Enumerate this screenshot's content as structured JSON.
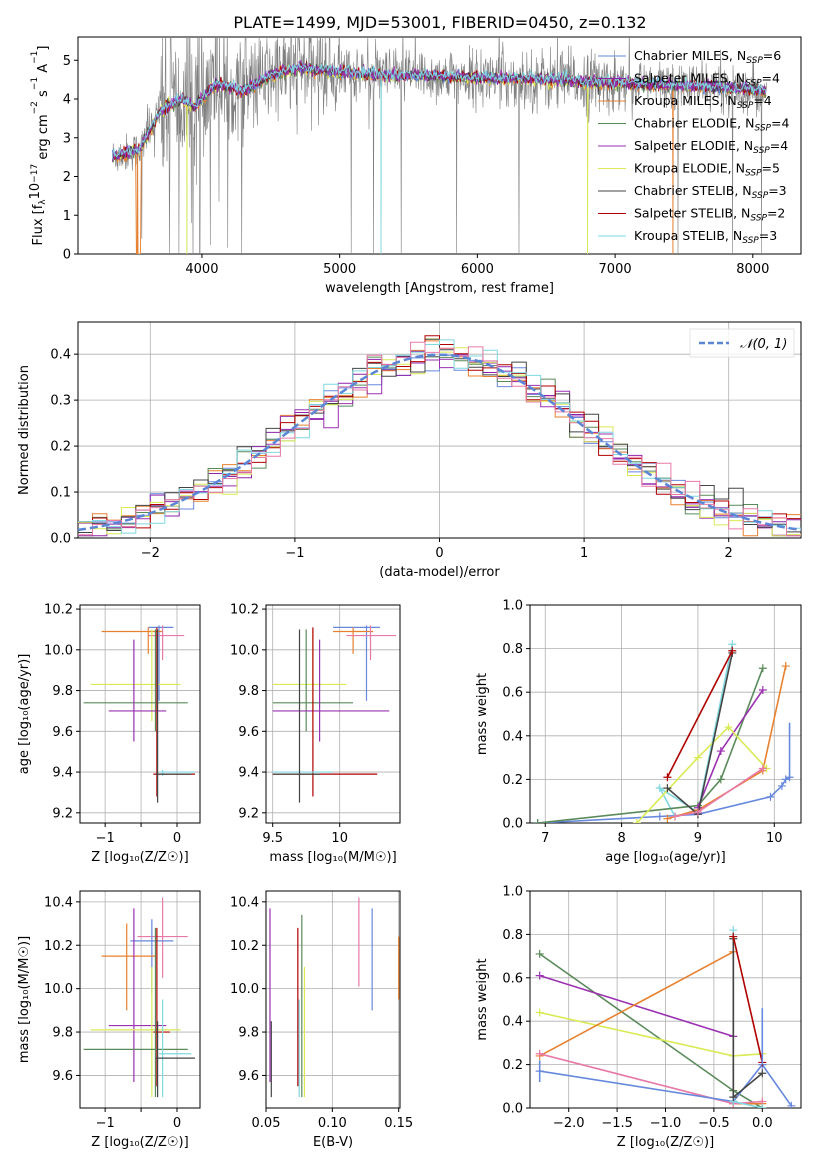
{
  "colors": {
    "cm": "#6688dd",
    "sm": "#8e24aa",
    "km": "#e8812f",
    "ce": "#5a8a5a",
    "se": "#9b30b0",
    "ke": "#d9ea55",
    "cs": "#444444",
    "ss": "#b00000",
    "kst": "#7fd8e0",
    "pink": "#e87aa8",
    "data": "#808080",
    "normal": "#5b86d6"
  },
  "chart_data": [
    {
      "id": "spectrum",
      "type": "line",
      "title": "PLATE=1499, MJD=53001, FIBERID=0450, z=0.132",
      "xlabel": "wavelength [Angstrom, rest frame]",
      "ylabel_parts": [
        "Flux [f",
        "λ",
        "10",
        "−17",
        " erg cm",
        "−2",
        " s",
        "−1",
        " A",
        "−1",
        "]"
      ],
      "xlim": [
        3100,
        8350
      ],
      "ylim": [
        0,
        5.6
      ],
      "xticks": [
        4000,
        5000,
        6000,
        7000,
        8000
      ],
      "yticks": [
        0,
        1,
        2,
        3,
        4,
        5
      ],
      "legend_placement": "upper-right",
      "legend": [
        {
          "color": "cm",
          "text": "Chabrier MILES, N",
          "sub": "SSP",
          "tail": "=6"
        },
        {
          "color": "sm",
          "text": "Salpeter MILES, N",
          "sub": "SSP",
          "tail": "=4"
        },
        {
          "color": "km",
          "text": "Kroupa MILES, N",
          "sub": "SSP",
          "tail": "=4"
        },
        {
          "color": "ce",
          "text": "Chabrier ELODIE, N",
          "sub": "SSP",
          "tail": "=4"
        },
        {
          "color": "se",
          "text": "Salpeter ELODIE, N",
          "sub": "SSP",
          "tail": "=4"
        },
        {
          "color": "ke",
          "text": "Kroupa ELODIE, N",
          "sub": "SSP",
          "tail": "=5"
        },
        {
          "color": "cs",
          "text": "Chabrier STELIB, N",
          "sub": "SSP",
          "tail": "=3"
        },
        {
          "color": "ss",
          "text": "Salpeter STELIB, N",
          "sub": "SSP",
          "tail": "=2"
        },
        {
          "color": "kst",
          "text": "Kroupa STELIB, N",
          "sub": "SSP",
          "tail": "=3"
        }
      ],
      "model_continuum": [
        [
          3350,
          2.5
        ],
        [
          3550,
          2.7
        ],
        [
          3700,
          3.7
        ],
        [
          3850,
          4.0
        ],
        [
          3950,
          3.8
        ],
        [
          4100,
          4.4
        ],
        [
          4300,
          4.2
        ],
        [
          4500,
          4.6
        ],
        [
          4700,
          4.8
        ],
        [
          5000,
          4.7
        ],
        [
          5300,
          4.6
        ],
        [
          5600,
          4.6
        ],
        [
          6000,
          4.55
        ],
        [
          6500,
          4.5
        ],
        [
          7000,
          4.4
        ],
        [
          7500,
          4.35
        ],
        [
          8000,
          4.25
        ],
        [
          8100,
          4.2
        ]
      ],
      "dips_x": [
        3890,
        5300,
        6800,
        7420,
        3530
      ]
    },
    {
      "id": "residuals",
      "type": "step",
      "xlabel": "(data-model)/error",
      "ylabel": "Normed distribution",
      "xlim": [
        -2.5,
        2.5
      ],
      "ylim": [
        0,
        0.47
      ],
      "xticks": [
        -2,
        -1,
        0,
        1,
        2
      ],
      "yticks": [
        0.0,
        0.1,
        0.2,
        0.3,
        0.4
      ],
      "legend_placement": "upper-right",
      "legend": "𝒩(0, 1)",
      "bin_width": 0.1
    },
    {
      "id": "age_vs_Z",
      "type": "errorbar",
      "xlabel": "Z [log₁₀(Z/Z☉)]",
      "ylabel": "age  [log₁₀(age/yr)]",
      "xlim": [
        -1.35,
        0.32
      ],
      "ylim": [
        9.15,
        10.22
      ],
      "xticks": [
        -1,
        -0.5,
        0
      ],
      "xticklabels": [
        "−1",
        "",
        "0"
      ],
      "yticks": [
        9.2,
        9.4,
        9.6,
        9.8,
        10.0,
        10.2
      ],
      "points": [
        {
          "c": "cm",
          "x": -0.25,
          "xe": [
            -0.4,
            -0.05
          ],
          "y": 10.11,
          "ye": [
            9.75,
            10.12
          ]
        },
        {
          "c": "km",
          "x": -0.4,
          "xe": [
            -1.05,
            -0.2
          ],
          "y": 10.09,
          "ye": [
            9.98,
            10.11
          ]
        },
        {
          "c": "pink",
          "x": -0.2,
          "xe": [
            -0.4,
            0.1
          ],
          "y": 10.07,
          "ye": [
            9.95,
            10.12
          ]
        },
        {
          "c": "ke",
          "x": -0.35,
          "xe": [
            -1.2,
            0.05
          ],
          "y": 9.83,
          "ye": [
            9.65,
            10.1
          ]
        },
        {
          "c": "ce",
          "x": -0.3,
          "xe": [
            -1.3,
            0.15
          ],
          "y": 9.74,
          "ye": [
            9.6,
            10.1
          ]
        },
        {
          "c": "se",
          "x": -0.6,
          "xe": [
            -0.95,
            -0.15
          ],
          "y": 9.7,
          "ye": [
            9.55,
            10.05
          ]
        },
        {
          "c": "ss",
          "x": -0.28,
          "xe": [
            -0.33,
            0.25
          ],
          "y": 9.39,
          "ye": [
            9.28,
            10.11
          ]
        },
        {
          "c": "kst",
          "x": -0.2,
          "xe": [
            -0.25,
            0.25
          ],
          "y": 9.4,
          "ye": [
            9.38,
            9.41
          ]
        },
        {
          "c": "cs",
          "x": -0.27,
          "xe": [
            -0.3,
            0.2
          ],
          "y": 9.39,
          "ye": [
            9.25,
            10.1
          ]
        }
      ]
    },
    {
      "id": "age_vs_mass",
      "type": "errorbar",
      "xlabel": "mass [log₁₀(M/M☉)]",
      "xlim": [
        9.45,
        10.45
      ],
      "ylim": [
        9.15,
        10.22
      ],
      "xticks": [
        9.5,
        10.0
      ],
      "yticks": [
        9.2,
        9.4,
        9.6,
        9.8,
        10.0,
        10.2
      ],
      "points": [
        {
          "c": "cm",
          "x": 10.2,
          "xe": [
            9.95,
            10.3
          ],
          "y": 10.11,
          "ye": [
            9.75,
            10.12
          ]
        },
        {
          "c": "km",
          "x": 10.1,
          "xe": [
            9.95,
            10.25
          ],
          "y": 10.09,
          "ye": [
            9.98,
            10.11
          ]
        },
        {
          "c": "pink",
          "x": 10.23,
          "xe": [
            10.05,
            10.42
          ],
          "y": 10.07,
          "ye": [
            9.95,
            10.12
          ]
        },
        {
          "c": "ke",
          "x": 9.8,
          "xe": [
            9.5,
            10.05
          ],
          "y": 9.83,
          "ye": [
            9.65,
            10.1
          ]
        },
        {
          "c": "ce",
          "x": 9.75,
          "xe": [
            9.5,
            10.1
          ],
          "y": 9.74,
          "ye": [
            9.6,
            10.1
          ]
        },
        {
          "c": "se",
          "x": 9.85,
          "xe": [
            9.5,
            10.37
          ],
          "y": 9.7,
          "ye": [
            9.55,
            10.05
          ]
        },
        {
          "c": "ss",
          "x": 9.8,
          "xe": [
            9.5,
            10.28
          ],
          "y": 9.39,
          "ye": [
            9.28,
            10.11
          ]
        },
        {
          "c": "kst",
          "x": 9.7,
          "xe": [
            9.5,
            9.95
          ],
          "y": 9.4,
          "ye": [
            9.38,
            9.41
          ]
        },
        {
          "c": "cs",
          "x": 9.7,
          "xe": [
            9.5,
            9.85
          ],
          "y": 9.39,
          "ye": [
            9.25,
            10.1
          ]
        }
      ]
    },
    {
      "id": "weight_vs_age",
      "type": "line",
      "xlabel": "age  [log₁₀(age/yr)]",
      "ylabel": "mass weight",
      "xlim": [
        6.8,
        10.35
      ],
      "ylim": [
        0,
        1.0
      ],
      "xticks": [
        7,
        8,
        9,
        10
      ],
      "yticks": [
        0.0,
        0.2,
        0.4,
        0.6,
        0.8,
        1.0
      ],
      "series": [
        {
          "c": "cm",
          "points": [
            [
              6.9,
              0.0
            ],
            [
              8.5,
              0.03
            ],
            [
              9.0,
              0.04
            ],
            [
              9.95,
              0.12
            ],
            [
              10.1,
              0.17
            ],
            [
              10.15,
              0.2
            ],
            [
              10.2,
              0.21
            ]
          ]
        },
        {
          "c": "kst",
          "points": [
            [
              8.7,
              0.03
            ],
            [
              8.5,
              0.16
            ],
            [
              9.0,
              0.05
            ],
            [
              9.45,
              0.82
            ]
          ]
        },
        {
          "c": "km",
          "points": [
            [
              8.6,
              0.02
            ],
            [
              9.0,
              0.06
            ],
            [
              9.85,
              0.24
            ],
            [
              10.15,
              0.72
            ]
          ]
        },
        {
          "c": "ce",
          "points": [
            [
              6.9,
              0.0
            ],
            [
              9.0,
              0.08
            ],
            [
              9.3,
              0.2
            ],
            [
              9.85,
              0.71
            ]
          ]
        },
        {
          "c": "se",
          "points": [
            [
              9.0,
              0.07
            ],
            [
              9.3,
              0.33
            ],
            [
              9.85,
              0.61
            ]
          ]
        },
        {
          "c": "ke",
          "points": [
            [
              8.2,
              0.0
            ],
            [
              9.0,
              0.3
            ],
            [
              9.4,
              0.44
            ],
            [
              9.9,
              0.25
            ]
          ]
        },
        {
          "c": "cs",
          "points": [
            [
              8.6,
              0.16
            ],
            [
              9.0,
              0.04
            ],
            [
              9.45,
              0.78
            ]
          ]
        },
        {
          "c": "ss",
          "points": [
            [
              8.6,
              0.21
            ],
            [
              9.45,
              0.79
            ]
          ]
        },
        {
          "c": "pink",
          "points": [
            [
              8.7,
              0.03
            ],
            [
              9.0,
              0.05
            ],
            [
              9.85,
              0.25
            ]
          ]
        }
      ],
      "errbars": [
        {
          "c": "cm",
          "x": 10.2,
          "y0": 0.2,
          "y1": 0.46
        }
      ]
    },
    {
      "id": "mass_vs_Z",
      "type": "errorbar",
      "xlabel": "Z [log₁₀(Z/Z☉)]",
      "ylabel": "mass [log₁₀(M/M☉)]",
      "xlim": [
        -1.35,
        0.32
      ],
      "ylim": [
        9.45,
        10.45
      ],
      "xticks": [
        -1,
        -0.5,
        0
      ],
      "xticklabels": [
        "−1",
        "",
        "0"
      ],
      "yticks": [
        9.6,
        9.8,
        10.0,
        10.2,
        10.4
      ],
      "points": [
        {
          "c": "pink",
          "x": -0.2,
          "xe": [
            -0.55,
            0.15
          ],
          "y": 10.24,
          "ye": [
            10.05,
            10.42
          ]
        },
        {
          "c": "cm",
          "x": -0.35,
          "xe": [
            -0.65,
            -0.05
          ],
          "y": 10.22,
          "ye": [
            9.98,
            10.32
          ]
        },
        {
          "c": "km",
          "x": -0.7,
          "xe": [
            -1.05,
            -0.3
          ],
          "y": 10.15,
          "ye": [
            9.9,
            10.3
          ]
        },
        {
          "c": "se",
          "x": -0.6,
          "xe": [
            -0.95,
            -0.15
          ],
          "y": 9.83,
          "ye": [
            9.57,
            10.37
          ]
        },
        {
          "c": "ke",
          "x": -0.35,
          "xe": [
            -1.2,
            0.05
          ],
          "y": 9.81,
          "ye": [
            9.5,
            10.1
          ]
        },
        {
          "c": "ss",
          "x": -0.28,
          "xe": [
            -0.33,
            -0.1
          ],
          "y": 9.8,
          "ye": [
            9.55,
            10.28
          ]
        },
        {
          "c": "ce",
          "x": -0.3,
          "xe": [
            -1.3,
            0.15
          ],
          "y": 9.72,
          "ye": [
            9.5,
            10.28
          ]
        },
        {
          "c": "kst",
          "x": -0.2,
          "xe": [
            -0.25,
            0.2
          ],
          "y": 9.7,
          "ye": [
            9.5,
            9.95
          ]
        },
        {
          "c": "cs",
          "x": -0.27,
          "xe": [
            -0.3,
            0.25
          ],
          "y": 9.68,
          "ye": [
            9.5,
            9.85
          ]
        }
      ]
    },
    {
      "id": "mass_vs_ebv",
      "type": "errorbar",
      "xlabel": "E(B-V)",
      "xlim": [
        0.05,
        0.151
      ],
      "ylim": [
        9.45,
        10.45
      ],
      "xticks": [
        0.05,
        0.1,
        0.15
      ],
      "xticklabels": [
        "0.05",
        "0.10",
        "0.15"
      ],
      "yticks": [
        9.6,
        9.8,
        10.0,
        10.2,
        10.4
      ],
      "points": [
        {
          "c": "se",
          "x": 0.053,
          "y0": 9.57,
          "y1": 10.37
        },
        {
          "c": "cs",
          "x": 0.054,
          "y0": 9.5,
          "y1": 9.85
        },
        {
          "c": "ss",
          "x": 0.074,
          "y0": 9.55,
          "y1": 10.28
        },
        {
          "c": "kst",
          "x": 0.075,
          "y0": 9.5,
          "y1": 9.95
        },
        {
          "c": "ce",
          "x": 0.077,
          "y0": 9.5,
          "y1": 10.34
        },
        {
          "c": "ke",
          "x": 0.079,
          "y0": 9.5,
          "y1": 10.1
        },
        {
          "c": "pink",
          "x": 0.12,
          "y0": 10.01,
          "y1": 10.42
        },
        {
          "c": "cm",
          "x": 0.13,
          "y0": 9.9,
          "y1": 10.37
        },
        {
          "c": "km",
          "x": 0.15,
          "y0": 9.95,
          "y1": 10.24
        }
      ]
    },
    {
      "id": "weight_vs_Z",
      "type": "line",
      "xlabel": "Z [log₁₀(Z/Z☉)]",
      "ylabel": "mass weight",
      "xlim": [
        -2.4,
        0.4
      ],
      "ylim": [
        0,
        1.0
      ],
      "xticks": [
        -2.0,
        -1.5,
        -1.0,
        -0.5,
        0.0
      ],
      "xticklabels": [
        "−2.0",
        "−1.5",
        "−1.0",
        "−0.5",
        "0.0"
      ],
      "yticks": [
        0.0,
        0.2,
        0.4,
        0.6,
        0.8,
        1.0
      ],
      "series": [
        {
          "c": "ce",
          "points": [
            [
              -2.3,
              0.71
            ],
            [
              -0.3,
              0.08
            ],
            [
              0.0,
              0.0
            ]
          ]
        },
        {
          "c": "se",
          "points": [
            [
              -2.3,
              0.61
            ],
            [
              -0.3,
              0.33
            ]
          ]
        },
        {
          "c": "ke",
          "points": [
            [
              -2.3,
              0.44
            ],
            [
              -0.3,
              0.24
            ],
            [
              0.0,
              0.25
            ]
          ]
        },
        {
          "c": "km",
          "points": [
            [
              -2.3,
              0.24
            ],
            [
              -0.3,
              0.72
            ],
            [
              -0.3,
              0.02
            ],
            [
              0.0,
              0.02
            ]
          ]
        },
        {
          "c": "pink",
          "points": [
            [
              -2.3,
              0.25
            ],
            [
              -0.3,
              0.02
            ],
            [
              0.0,
              0.03
            ]
          ]
        },
        {
          "c": "cm",
          "points": [
            [
              -2.3,
              0.17
            ],
            [
              -0.3,
              0.03
            ],
            [
              0.0,
              0.2
            ],
            [
              0.3,
              0.01
            ]
          ]
        },
        {
          "c": "kst",
          "points": [
            [
              -0.3,
              0.82
            ],
            [
              -0.3,
              0.03
            ],
            [
              0.0,
              0.0
            ]
          ]
        },
        {
          "c": "cs",
          "points": [
            [
              -0.3,
              0.78
            ],
            [
              -0.3,
              0.05
            ],
            [
              0.0,
              0.16
            ]
          ]
        },
        {
          "c": "ss",
          "points": [
            [
              -0.3,
              0.79
            ],
            [
              0.0,
              0.21
            ]
          ]
        }
      ],
      "errbars": [
        {
          "c": "cm",
          "x": -2.3,
          "y0": 0.12,
          "y1": 0.22
        },
        {
          "c": "cm",
          "x": 0.0,
          "y0": 0.2,
          "y1": 0.46
        }
      ]
    }
  ]
}
